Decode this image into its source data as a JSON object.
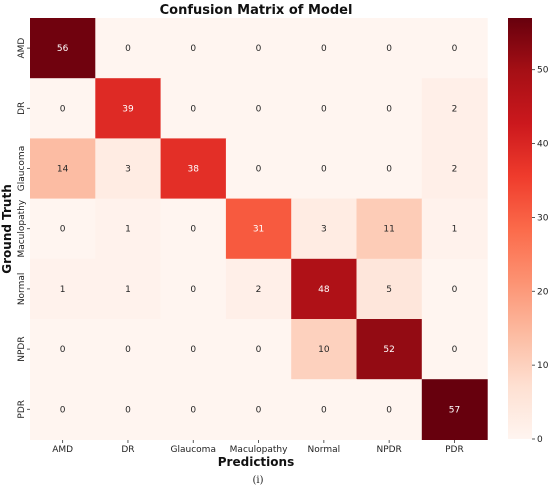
{
  "chart_data": {
    "type": "heatmap",
    "title": "Confusion Matrix of Model",
    "xlabel": "Predictions",
    "ylabel": "Ground Truth",
    "x_categories": [
      "AMD",
      "DR",
      "Glaucoma",
      "Maculopathy",
      "Normal",
      "NPDR",
      "PDR"
    ],
    "y_categories": [
      "AMD",
      "DR",
      "Glaucoma",
      "Maculopathy",
      "Normal",
      "NPDR",
      "PDR"
    ],
    "values": [
      [
        56,
        0,
        0,
        0,
        0,
        0,
        0
      ],
      [
        0,
        39,
        0,
        0,
        0,
        0,
        2
      ],
      [
        14,
        3,
        38,
        0,
        0,
        0,
        2
      ],
      [
        0,
        1,
        0,
        31,
        3,
        11,
        1
      ],
      [
        1,
        1,
        0,
        2,
        48,
        5,
        0
      ],
      [
        0,
        0,
        0,
        0,
        10,
        52,
        0
      ],
      [
        0,
        0,
        0,
        0,
        0,
        0,
        57
      ]
    ],
    "value_range": [
      0,
      57
    ],
    "colorbar_ticks": [
      0,
      10,
      20,
      30,
      40,
      50
    ],
    "colormap": "Reds",
    "colors": {
      "low": "#fff5f0",
      "high": "#67000d"
    }
  },
  "caption": "(i)"
}
